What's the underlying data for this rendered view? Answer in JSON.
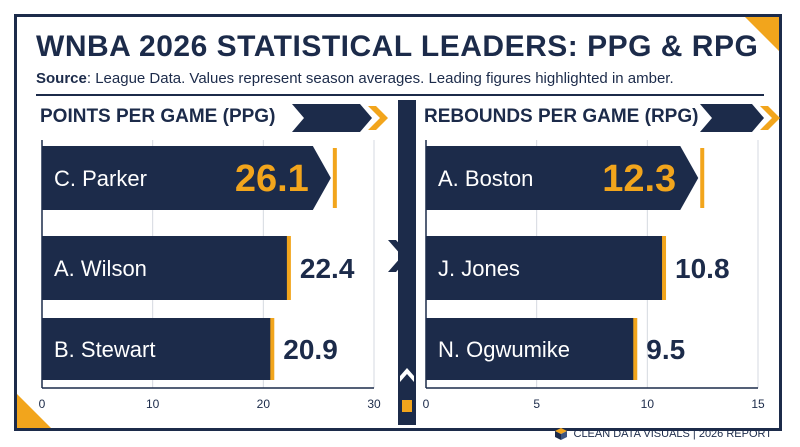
{
  "title": "WNBA 2026 STATISTICAL LEADERS: PPG & RPG",
  "subtitle_source_label": "Source",
  "subtitle_text": ": League Data. Values represent season averages. Leading figures highlighted in amber.",
  "footer_text": "CLEAN DATA VISUALS | 2026 REPORT",
  "colors": {
    "navy": "#1c2b4a",
    "amber": "#f2a51c",
    "grid": "#d5d9e0"
  },
  "chart_data": [
    {
      "type": "bar",
      "orientation": "horizontal",
      "title": "POINTS PER GAME (PPG)",
      "categories": [
        "C. Parker",
        "A. Wilson",
        "B. Stewart"
      ],
      "values": [
        26.1,
        22.4,
        20.9
      ],
      "value_labels": [
        "26.1",
        "22.4",
        "20.9"
      ],
      "highlight_index": 0,
      "xlim": [
        0,
        30
      ],
      "xticks": [
        0,
        10,
        20,
        30
      ],
      "xtick_labels": [
        "0",
        "10",
        "20",
        "30"
      ],
      "grid": true
    },
    {
      "type": "bar",
      "orientation": "horizontal",
      "title": "REBOUNDS PER GAME (RPG)",
      "categories": [
        "A. Boston",
        "J. Jones",
        "N. Ogwumike"
      ],
      "values": [
        12.3,
        10.8,
        9.5
      ],
      "value_labels": [
        "12.3",
        "10.8",
        "9.5"
      ],
      "highlight_index": 0,
      "xlim": [
        0,
        15
      ],
      "xticks": [
        0,
        5,
        10,
        15
      ],
      "xtick_labels": [
        "0",
        "5",
        "10",
        "15"
      ],
      "grid": true
    }
  ]
}
